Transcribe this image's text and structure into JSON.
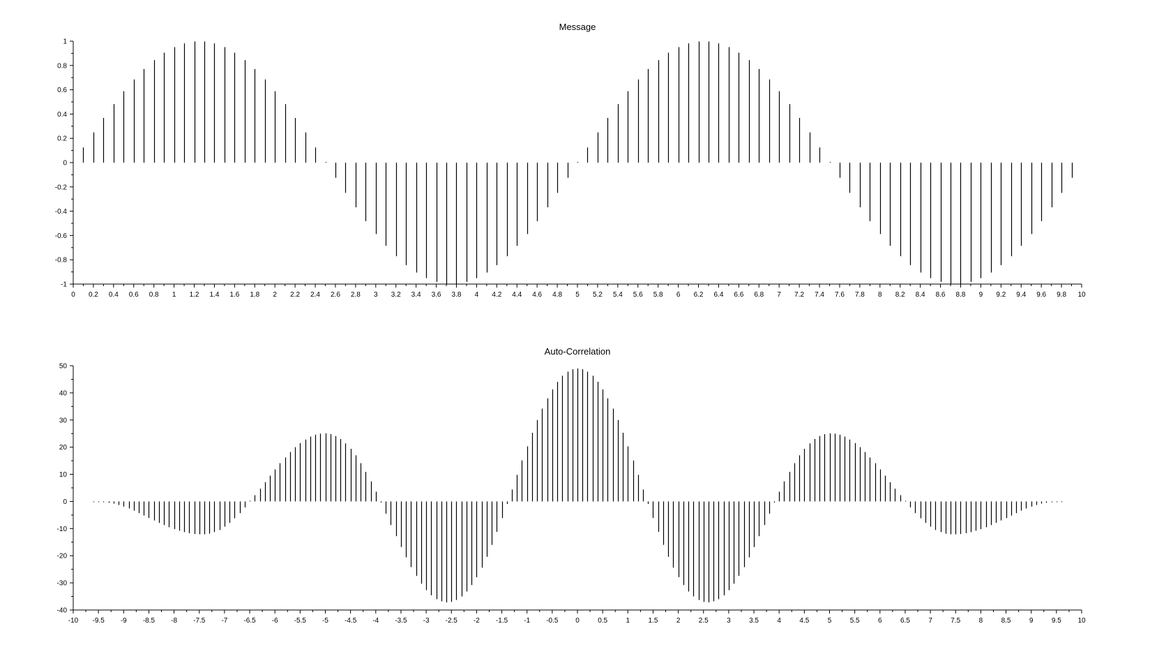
{
  "chart_data": [
    {
      "type": "stem",
      "title": "Message",
      "xlabel": "",
      "ylabel": "",
      "xlim": [
        0,
        10
      ],
      "ylim": [
        -1,
        1
      ],
      "x_ticks": [
        0,
        0.2,
        0.4,
        0.6,
        0.8,
        1,
        1.2,
        1.4,
        1.6,
        1.8,
        2,
        2.2,
        2.4,
        2.6,
        2.8,
        3,
        3.2,
        3.4,
        3.6,
        3.8,
        4,
        4.2,
        4.4,
        4.6,
        4.8,
        5,
        5.2,
        5.4,
        5.6,
        5.8,
        6,
        6.2,
        6.4,
        6.6,
        6.8,
        7,
        7.2,
        7.4,
        7.6,
        7.8,
        8,
        8.2,
        8.4,
        8.6,
        8.8,
        9,
        9.2,
        9.4,
        9.6,
        9.8,
        10
      ],
      "y_ticks": [
        -1,
        -0.8,
        -0.6,
        -0.4,
        -0.2,
        0,
        0.2,
        0.4,
        0.6,
        0.8,
        1
      ],
      "x_tick_labels": [
        "0",
        "0.2",
        "0.4",
        "0.6",
        "0.8",
        "1",
        "1.2",
        "1.4",
        "1.6",
        "1.8",
        "2",
        "2.2",
        "2.4",
        "2.6",
        "2.8",
        "3",
        "3.2",
        "3.4",
        "3.6",
        "3.8",
        "4",
        "4.2",
        "4.4",
        "4.6",
        "4.8",
        "5",
        "5.2",
        "5.4",
        "5.6",
        "5.8",
        "6",
        "6.2",
        "6.4",
        "6.6",
        "6.8",
        "7",
        "7.2",
        "7.4",
        "7.6",
        "7.8",
        "8",
        "8.2",
        "8.4",
        "8.6",
        "8.8",
        "9",
        "9.2",
        "9.4",
        "9.6",
        "9.8",
        "10"
      ],
      "y_tick_labels": [
        "-1",
        "-0.8",
        "-0.6",
        "-0.4",
        "-0.2",
        "0",
        "0.2",
        "0.4",
        "0.6",
        "0.8",
        "1"
      ],
      "grid": false,
      "x": [
        0.1,
        0.2,
        0.3,
        0.4,
        0.5,
        0.6,
        0.7,
        0.8,
        0.9,
        1,
        1.1,
        1.2,
        1.3,
        1.4,
        1.5,
        1.6,
        1.7,
        1.8,
        1.9,
        2,
        2.1,
        2.2,
        2.3,
        2.4,
        2.5,
        2.6,
        2.7,
        2.8,
        2.9,
        3,
        3.1,
        3.2,
        3.3,
        3.4,
        3.5,
        3.6,
        3.7,
        3.8,
        3.9,
        4,
        4.1,
        4.2,
        4.3,
        4.4,
        4.5,
        4.6,
        4.7,
        4.8,
        4.9,
        5,
        5.1,
        5.2,
        5.3,
        5.4,
        5.5,
        5.6,
        5.7,
        5.8,
        5.9,
        6,
        6.1,
        6.2,
        6.3,
        6.4,
        6.5,
        6.6,
        6.7,
        6.8,
        6.9,
        7,
        7.1,
        7.2,
        7.3,
        7.4,
        7.5,
        7.6,
        7.7,
        7.8,
        7.9,
        8,
        8.1,
        8.2,
        8.3,
        8.4,
        8.5,
        8.6,
        8.7,
        8.8,
        8.9,
        9,
        9.1,
        9.2,
        9.3,
        9.4,
        9.5,
        9.6,
        9.7,
        9.8,
        9.9
      ],
      "values": [
        0.125,
        0.249,
        0.368,
        0.482,
        0.588,
        0.685,
        0.771,
        0.844,
        0.905,
        0.951,
        0.982,
        0.998,
        0.998,
        0.982,
        0.951,
        0.905,
        0.844,
        0.771,
        0.685,
        0.588,
        0.482,
        0.368,
        0.249,
        0.125,
        0,
        -0.125,
        -0.249,
        -0.368,
        -0.482,
        -0.588,
        -0.685,
        -0.771,
        -0.844,
        -0.905,
        -0.951,
        -0.982,
        -0.998,
        -0.998,
        -0.982,
        -0.951,
        -0.905,
        -0.844,
        -0.771,
        -0.685,
        -0.588,
        -0.482,
        -0.368,
        -0.249,
        -0.125,
        0,
        0.125,
        0.249,
        0.368,
        0.482,
        0.588,
        0.685,
        0.771,
        0.844,
        0.905,
        0.951,
        0.982,
        0.998,
        0.998,
        0.982,
        0.951,
        0.905,
        0.844,
        0.771,
        0.685,
        0.588,
        0.482,
        0.368,
        0.249,
        0.125,
        0,
        -0.125,
        -0.249,
        -0.368,
        -0.482,
        -0.588,
        -0.685,
        -0.771,
        -0.844,
        -0.905,
        -0.951,
        -0.982,
        -0.998,
        -0.998,
        -0.982,
        -0.951,
        -0.905,
        -0.844,
        -0.771,
        -0.685,
        -0.588,
        -0.482,
        -0.368,
        -0.249,
        -0.125
      ]
    },
    {
      "type": "stem",
      "title": "Auto-Correlation",
      "xlabel": "",
      "ylabel": "",
      "xlim": [
        -10,
        10
      ],
      "ylim": [
        -40,
        50
      ],
      "x_ticks": [
        -10,
        -9.5,
        -9,
        -8.5,
        -8,
        -7.5,
        -7,
        -6.5,
        -6,
        -5.5,
        -5,
        -4.5,
        -4,
        -3.5,
        -3,
        -2.5,
        -2,
        -1.5,
        -1,
        -0.5,
        0,
        0.5,
        1,
        1.5,
        2,
        2.5,
        3,
        3.5,
        4,
        4.5,
        5,
        5.5,
        6,
        6.5,
        7,
        7.5,
        8,
        8.5,
        9,
        9.5,
        10
      ],
      "y_ticks": [
        -40,
        -30,
        -20,
        -10,
        0,
        10,
        20,
        30,
        40,
        50
      ],
      "x_tick_labels": [
        "-10",
        "-9.5",
        "-9",
        "-8.5",
        "-8",
        "-7.5",
        "-7",
        "-6.5",
        "-6",
        "-5.5",
        "-5",
        "-4.5",
        "-4",
        "-3.5",
        "-3",
        "-2.5",
        "-2",
        "-1.5",
        "-1",
        "-0.5",
        "0",
        "0.5",
        "1",
        "1.5",
        "2",
        "2.5",
        "3",
        "3.5",
        "4",
        "4.5",
        "5",
        "5.5",
        "6",
        "6.5",
        "7",
        "7.5",
        "8",
        "8.5",
        "9",
        "9.5",
        "10"
      ],
      "y_tick_labels": [
        "-40",
        "-30",
        "-20",
        "-10",
        "0",
        "10",
        "20",
        "30",
        "40",
        "50"
      ],
      "grid": false,
      "x": [
        -9.6,
        -9.5,
        -9.4,
        -9.3,
        -9.2,
        -9.1,
        -9,
        -8.9,
        -8.8,
        -8.7,
        -8.6,
        -8.5,
        -8.4,
        -8.3,
        -8.2,
        -8.1,
        -8,
        -7.9,
        -7.8,
        -7.7,
        -7.6,
        -7.5,
        -7.4,
        -7.3,
        -7.2,
        -7.1,
        -7,
        -6.9,
        -6.8,
        -6.7,
        -6.6,
        -6.5,
        -6.4,
        -6.3,
        -6.2,
        -6.1,
        -6,
        -5.9,
        -5.8,
        -5.7,
        -5.6,
        -5.5,
        -5.4,
        -5.3,
        -5.2,
        -5.1,
        -5,
        -4.9,
        -4.8,
        -4.7,
        -4.6,
        -4.5,
        -4.4,
        -4.3,
        -4.2,
        -4.1,
        -4,
        -3.9,
        -3.8,
        -3.7,
        -3.6,
        -3.5,
        -3.4,
        -3.3,
        -3.2,
        -3.1,
        -3,
        -2.9,
        -2.8,
        -2.7,
        -2.6,
        -2.5,
        -2.4,
        -2.3,
        -2.2,
        -2.1,
        -2,
        -1.9,
        -1.8,
        -1.7,
        -1.6,
        -1.5,
        -1.4,
        -1.3,
        -1.2,
        -1.1,
        -1,
        -0.9,
        -0.8,
        -0.7,
        -0.6,
        -0.5,
        -0.4,
        -0.3,
        -0.2,
        -0.1,
        0,
        0.1,
        0.2,
        0.3,
        0.4,
        0.5,
        0.6,
        0.7,
        0.8,
        0.9,
        1,
        1.1,
        1.2,
        1.3,
        1.4,
        1.5,
        1.6,
        1.7,
        1.8,
        1.9,
        2,
        2.1,
        2.2,
        2.3,
        2.4,
        2.5,
        2.6,
        2.7,
        2.8,
        2.9,
        3,
        3.1,
        3.2,
        3.3,
        3.4,
        3.5,
        3.6,
        3.7,
        3.8,
        3.9,
        4,
        4.1,
        4.2,
        4.3,
        4.4,
        4.5,
        4.6,
        4.7,
        4.8,
        4.9,
        5,
        5.1,
        5.2,
        5.3,
        5.4,
        5.5,
        5.6,
        5.7,
        5.8,
        5.9,
        6,
        6.1,
        6.2,
        6.3,
        6.4,
        6.5,
        6.6,
        6.7,
        6.8,
        6.9,
        7,
        7.1,
        7.2,
        7.3,
        7.4,
        7.5,
        7.6,
        7.7,
        7.8,
        7.9,
        8,
        8.1,
        8.2,
        8.3,
        8.4,
        8.5,
        8.6,
        8.7,
        8.8,
        8.9,
        9,
        9.1,
        9.2,
        9.3,
        9.4,
        9.5,
        9.6
      ],
      "values": [
        -0.06,
        -0.2,
        -0.3,
        -0.5,
        -0.8,
        -1.3,
        -1.9,
        -2.6,
        -3.4,
        -4.3,
        -5.2,
        -6.1,
        -7,
        -7.9,
        -8.7,
        -9.5,
        -10.2,
        -10.8,
        -11.3,
        -11.7,
        -12,
        -12.1,
        -12.1,
        -11.9,
        -11.3,
        -10.5,
        -9.3,
        -7.9,
        -6.2,
        -4.3,
        -2.2,
        0,
        2.3,
        4.7,
        7.1,
        9.5,
        11.8,
        14.1,
        16.2,
        18.2,
        20,
        21.5,
        22.8,
        23.9,
        24.6,
        25,
        25.1,
        24.8,
        24.1,
        23,
        21.4,
        19.4,
        17,
        14.1,
        10.9,
        7.4,
        3.6,
        -0.4,
        -4.5,
        -8.7,
        -12.8,
        -16.8,
        -20.6,
        -24.2,
        -27.4,
        -30.3,
        -32.7,
        -34.6,
        -36,
        -36.8,
        -37.2,
        -37,
        -36.3,
        -35,
        -33.2,
        -30.8,
        -27.9,
        -24.4,
        -20.4,
        -16,
        -11.2,
        -6.1,
        -0.9,
        4.4,
        9.8,
        15.1,
        20.3,
        25.3,
        30,
        34.2,
        38,
        41.3,
        44.1,
        46.3,
        47.8,
        48.7,
        49,
        48.7,
        47.8,
        46.3,
        44.1,
        41.3,
        38,
        34.2,
        30,
        25.3,
        20.3,
        15.1,
        9.8,
        4.4,
        -0.9,
        -6.1,
        -11.2,
        -16,
        -20.4,
        -24.4,
        -27.9,
        -30.8,
        -33.2,
        -35,
        -36.3,
        -37,
        -37.2,
        -36.8,
        -36,
        -34.6,
        -32.7,
        -30.3,
        -27.4,
        -24.2,
        -20.6,
        -16.8,
        -12.8,
        -8.7,
        -4.5,
        -0.4,
        3.6,
        7.4,
        10.9,
        14.1,
        17,
        19.4,
        21.4,
        23,
        24.1,
        24.8,
        25.1,
        25,
        24.6,
        23.9,
        22.8,
        21.5,
        20,
        18.2,
        16.2,
        14.1,
        11.8,
        9.5,
        7.1,
        4.7,
        2.3,
        0,
        -2.2,
        -4.3,
        -6.2,
        -7.9,
        -9.3,
        -10.5,
        -11.3,
        -11.9,
        -12.1,
        -12.1,
        -12,
        -11.7,
        -11.3,
        -10.8,
        -10.2,
        -9.5,
        -8.7,
        -7.9,
        -7,
        -6.1,
        -5.2,
        -4.3,
        -3.4,
        -2.6,
        -1.9,
        -1.3,
        -0.8,
        -0.5,
        -0.3,
        -0.2,
        -0.06
      ]
    }
  ]
}
